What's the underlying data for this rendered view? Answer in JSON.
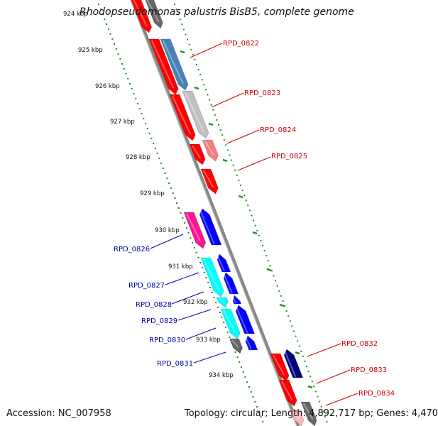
{
  "title": "Rhodopseudomonas palustris BisB5, complete genome",
  "footer": {
    "accession": "Accession: NC_007958",
    "topology": "Topology: circular; Length: 4,892,717 bp; Genes: 4,470"
  },
  "ticks": [
    "924 kbp",
    "925 kbp",
    "926 kbp",
    "927 kbp",
    "928 kbp",
    "929 kbp",
    "930 kbp",
    "931 kbp",
    "932 kbp",
    "933 kbp",
    "934 kbp"
  ],
  "genes_plus": [
    "RPD_0822",
    "RPD_0823",
    "RPD_0824",
    "RPD_0825",
    "RPD_0832",
    "RPD_0833",
    "RPD_0834"
  ],
  "genes_minus": [
    "RPD_0826",
    "RPD_0827",
    "RPD_0828",
    "RPD_0829",
    "RPD_0830",
    "RPD_0831"
  ],
  "colors": {
    "plus_label": "#cc0000",
    "minus_label": "#0000aa",
    "backbone": "#888888",
    "tick_marks": "#228b22",
    "red": "#ff0000",
    "blue": "#0000ff",
    "steel_blue": "#4682b4",
    "light_gray": "#c0c0c0",
    "light_red": "#f08080",
    "magenta": "#ff1493",
    "cyan": "#00ffff",
    "dark_gray": "#666666",
    "navy": "#000080",
    "pink": "#ffb6c1"
  }
}
